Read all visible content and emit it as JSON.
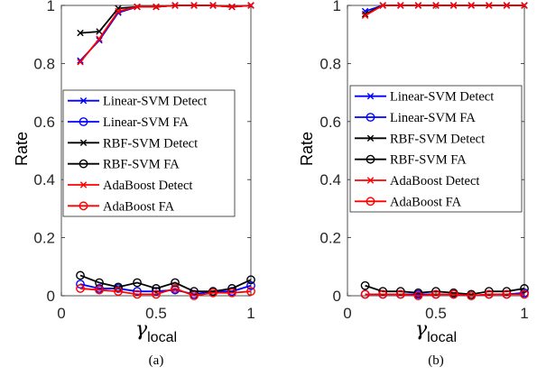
{
  "chart_data": [
    {
      "type": "line",
      "caption": "(a)",
      "ylabel": "Rate",
      "xlabel_main": "γ",
      "xlabel_sub": "local",
      "xlim": [
        0,
        1
      ],
      "ylim": [
        0,
        1
      ],
      "xticks": [
        0,
        0.5,
        1
      ],
      "xtick_labels": [
        "0",
        "0.5",
        "1"
      ],
      "yticks": [
        0,
        0.2,
        0.4,
        0.6,
        0.8,
        1
      ],
      "ytick_labels": [
        "0",
        "0.2",
        "0.4",
        "0.6",
        "0.8",
        "1"
      ],
      "legend_position": "center-right",
      "x": [
        0.1,
        0.2,
        0.3,
        0.4,
        0.5,
        0.6,
        0.7,
        0.8,
        0.9,
        1.0
      ],
      "series": [
        {
          "name": "Linear-SVM Detect",
          "color": "#0000ff",
          "marker": "x",
          "values": [
            0.81,
            0.88,
            0.975,
            0.995,
            0.995,
            1.0,
            1.0,
            1.0,
            0.995,
            1.0
          ]
        },
        {
          "name": "Linear-SVM FA",
          "color": "#0000ff",
          "marker": "o",
          "values": [
            0.04,
            0.025,
            0.025,
            0.015,
            0.015,
            0.02,
            0.005,
            0.015,
            0.015,
            0.035
          ]
        },
        {
          "name": "RBF-SVM Detect",
          "color": "#000000",
          "marker": "x",
          "values": [
            0.905,
            0.91,
            0.99,
            0.995,
            0.995,
            1.0,
            1.0,
            1.0,
            0.995,
            1.0
          ]
        },
        {
          "name": "RBF-SVM FA",
          "color": "#000000",
          "marker": "o",
          "values": [
            0.07,
            0.045,
            0.03,
            0.045,
            0.025,
            0.045,
            0.015,
            0.015,
            0.025,
            0.055
          ]
        },
        {
          "name": "AdaBoost Detect",
          "color": "#ff0000",
          "marker": "x",
          "values": [
            0.805,
            0.885,
            0.98,
            0.995,
            0.995,
            1.0,
            1.0,
            1.0,
            0.995,
            1.0
          ]
        },
        {
          "name": "AdaBoost FA",
          "color": "#ff0000",
          "marker": "o",
          "values": [
            0.025,
            0.02,
            0.015,
            0.005,
            0.005,
            0.025,
            0.0,
            0.01,
            0.01,
            0.015
          ]
        }
      ]
    },
    {
      "type": "line",
      "caption": "(b)",
      "ylabel": "Rate",
      "xlabel_main": "γ",
      "xlabel_sub": "local",
      "xlim": [
        0,
        1
      ],
      "ylim": [
        0,
        1
      ],
      "xticks": [
        0,
        0.5,
        1
      ],
      "xtick_labels": [
        "0",
        "0.5",
        "1"
      ],
      "yticks": [
        0,
        0.2,
        0.4,
        0.6,
        0.8,
        1
      ],
      "ytick_labels": [
        "0",
        "0.2",
        "0.4",
        "0.6",
        "0.8",
        "1"
      ],
      "legend_position": "center-right",
      "x": [
        0.1,
        0.2,
        0.3,
        0.4,
        0.5,
        0.6,
        0.7,
        0.8,
        0.9,
        1.0
      ],
      "series": [
        {
          "name": "Linear-SVM Detect",
          "color": "#0000ff",
          "marker": "x",
          "values": [
            0.98,
            1.0,
            1.0,
            1.0,
            1.0,
            1.0,
            1.0,
            1.0,
            1.0,
            1.0
          ]
        },
        {
          "name": "Linear-SVM FA",
          "color": "#0000ff",
          "marker": "o",
          "values": [
            0.005,
            0.005,
            0.005,
            0.005,
            0.005,
            0.005,
            0.0,
            0.005,
            0.005,
            0.01
          ]
        },
        {
          "name": "RBF-SVM Detect",
          "color": "#000000",
          "marker": "x",
          "values": [
            0.97,
            1.0,
            1.0,
            1.0,
            1.0,
            1.0,
            1.0,
            1.0,
            1.0,
            1.0
          ]
        },
        {
          "name": "RBF-SVM FA",
          "color": "#000000",
          "marker": "o",
          "values": [
            0.035,
            0.015,
            0.015,
            0.01,
            0.015,
            0.01,
            0.005,
            0.015,
            0.015,
            0.025
          ]
        },
        {
          "name": "AdaBoost Detect",
          "color": "#ff0000",
          "marker": "x",
          "values": [
            0.965,
            1.0,
            1.0,
            1.0,
            1.0,
            1.0,
            1.0,
            1.0,
            1.0,
            1.0
          ]
        },
        {
          "name": "AdaBoost FA",
          "color": "#ff0000",
          "marker": "o",
          "values": [
            0.005,
            0.005,
            0.005,
            0.0,
            0.005,
            0.005,
            0.0,
            0.005,
            0.005,
            0.005
          ]
        }
      ]
    }
  ]
}
